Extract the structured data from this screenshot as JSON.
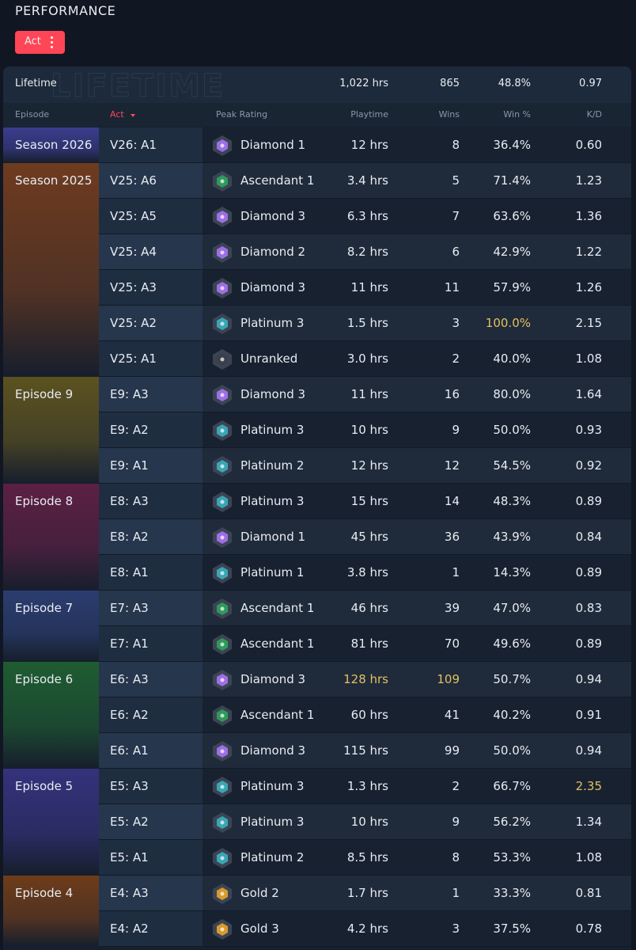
{
  "header": {
    "title": "PERFORMANCE",
    "filter": "Act"
  },
  "table": {
    "watermark": "LIFETIME",
    "lifetime": [
      "Lifetime",
      "1,022 hrs",
      "865",
      "48.8%",
      "0.97"
    ],
    "columns": [
      "Episode",
      "Act",
      "Peak Rating",
      "Playtime",
      "Wins",
      "Win %",
      "K/D"
    ],
    "highlight_color": "#e3c15f",
    "groups": [
      {
        "episode": "Season 2026",
        "color": "#3b3c8c",
        "rows": [
          {
            "cells": [
              "V26: A1",
              "Diamond 1",
              "12 hrs",
              "8",
              "36.4%",
              "0.60"
            ],
            "icon": "#9d6fe3"
          }
        ]
      },
      {
        "episode": "Season 2025",
        "color": "#6e3b1f",
        "rows": [
          {
            "cells": [
              "V25: A6",
              "Ascendant 1",
              "3.4 hrs",
              "5",
              "71.4%",
              "1.23"
            ],
            "icon": "#2f9a5a"
          },
          {
            "cells": [
              "V25: A5",
              "Diamond 3",
              "6.3 hrs",
              "7",
              "63.6%",
              "1.36"
            ],
            "icon": "#9d6fe3"
          },
          {
            "cells": [
              "V25: A4",
              "Diamond 2",
              "8.2 hrs",
              "6",
              "42.9%",
              "1.22"
            ],
            "icon": "#9d6fe3"
          },
          {
            "cells": [
              "V25: A3",
              "Diamond 3",
              "11 hrs",
              "11",
              "57.9%",
              "1.26"
            ],
            "icon": "#9d6fe3"
          },
          {
            "cells": [
              "V25: A2",
              "Platinum 3",
              "1.5 hrs",
              "3",
              "100.0%",
              "2.15"
            ],
            "icon": "#3aa6b4",
            "highlight": [
              4
            ]
          },
          {
            "cells": [
              "V25: A1",
              "Unranked",
              "3.0 hrs",
              "2",
              "40.0%",
              "1.08"
            ],
            "icon": "#3b3f47"
          }
        ]
      },
      {
        "episode": "Episode 9",
        "color": "#5c5220",
        "rows": [
          {
            "cells": [
              "E9: A3",
              "Diamond 3",
              "11 hrs",
              "16",
              "80.0%",
              "1.64"
            ],
            "icon": "#9d6fe3"
          },
          {
            "cells": [
              "E9: A2",
              "Platinum 3",
              "10 hrs",
              "9",
              "50.0%",
              "0.93"
            ],
            "icon": "#3aa6b4"
          },
          {
            "cells": [
              "E9: A1",
              "Platinum 2",
              "12 hrs",
              "12",
              "54.5%",
              "0.92"
            ],
            "icon": "#3aa6b4"
          }
        ]
      },
      {
        "episode": "Episode 8",
        "color": "#5c2044",
        "rows": [
          {
            "cells": [
              "E8: A3",
              "Platinum 3",
              "15 hrs",
              "14",
              "48.3%",
              "0.89"
            ],
            "icon": "#3aa6b4"
          },
          {
            "cells": [
              "E8: A2",
              "Diamond 1",
              "45 hrs",
              "36",
              "43.9%",
              "0.84"
            ],
            "icon": "#9d6fe3"
          },
          {
            "cells": [
              "E8: A1",
              "Platinum 1",
              "3.8 hrs",
              "1",
              "14.3%",
              "0.89"
            ],
            "icon": "#3aa6b4"
          }
        ]
      },
      {
        "episode": "Episode 7",
        "color": "#2b3d70",
        "rows": [
          {
            "cells": [
              "E7: A3",
              "Ascendant 1",
              "46 hrs",
              "39",
              "47.0%",
              "0.83"
            ],
            "icon": "#2f9a5a"
          },
          {
            "cells": [
              "E7: A1",
              "Ascendant 1",
              "81 hrs",
              "70",
              "49.6%",
              "0.89"
            ],
            "icon": "#2f9a5a"
          }
        ]
      },
      {
        "episode": "Episode 6",
        "color": "#1f5c31",
        "rows": [
          {
            "cells": [
              "E6: A3",
              "Diamond 3",
              "128 hrs",
              "109",
              "50.7%",
              "0.94"
            ],
            "icon": "#9d6fe3",
            "highlight": [
              2,
              3
            ]
          },
          {
            "cells": [
              "E6: A2",
              "Ascendant 1",
              "60 hrs",
              "41",
              "40.2%",
              "0.91"
            ],
            "icon": "#2f9a5a"
          },
          {
            "cells": [
              "E6: A1",
              "Diamond 3",
              "115 hrs",
              "99",
              "50.0%",
              "0.94"
            ],
            "icon": "#9d6fe3"
          }
        ]
      },
      {
        "episode": "Episode 5",
        "color": "#34327c",
        "rows": [
          {
            "cells": [
              "E5: A3",
              "Platinum 3",
              "1.3 hrs",
              "2",
              "66.7%",
              "2.35"
            ],
            "icon": "#3aa6b4",
            "highlight": [
              5
            ]
          },
          {
            "cells": [
              "E5: A2",
              "Platinum 3",
              "10 hrs",
              "9",
              "56.2%",
              "1.34"
            ],
            "icon": "#3aa6b4"
          },
          {
            "cells": [
              "E5: A1",
              "Platinum 2",
              "8.5 hrs",
              "8",
              "53.3%",
              "1.08"
            ],
            "icon": "#3aa6b4"
          }
        ]
      },
      {
        "episode": "Episode 4",
        "color": "#6e3c1a",
        "rows": [
          {
            "cells": [
              "E4: A3",
              "Gold 2",
              "1.7 hrs",
              "1",
              "33.3%",
              "0.81"
            ],
            "icon": "#d89a2e"
          },
          {
            "cells": [
              "E4: A2",
              "Gold 3",
              "4.2 hrs",
              "3",
              "37.5%",
              "0.78"
            ],
            "icon": "#d89a2e"
          }
        ]
      }
    ]
  }
}
